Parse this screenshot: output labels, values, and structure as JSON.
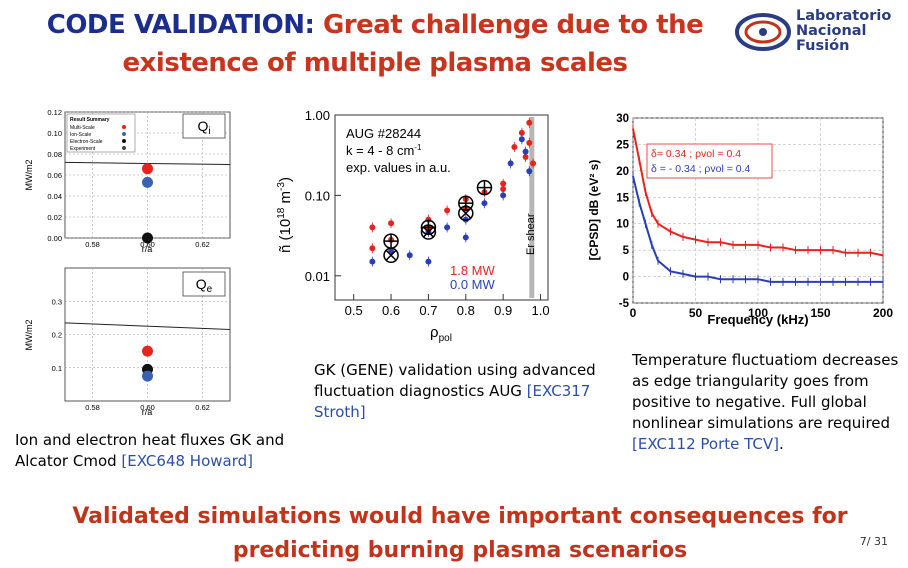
{
  "title": {
    "part1": "CODE VALIDATION:",
    "part2": " Great challenge due to the",
    "line2": "existence of multiple plasma scales"
  },
  "logo": {
    "line1": "Laboratorio",
    "line2": "Nacional",
    "line3": "Fusión"
  },
  "captions": {
    "left": {
      "text": "Ion and electron heat fluxes GK and Alcator Cmod ",
      "ref": "[EXC648 Howard]"
    },
    "middle": {
      "text": "GK (GENE) validation using advanced fluctuation diagnostics AUG ",
      "ref": "[EXC317 Stroth]"
    },
    "right": {
      "text": "Temperature fluctuatiom decreases as edge triangularity goes from positive to negative. Full global nonlinear simulations are required ",
      "ref": "[EXC112 Porte TCV]",
      "end": "."
    }
  },
  "conclusion": "Validated simulations would have important consequences for predicting burning plasma scenarios",
  "page": "7/ 31",
  "chart_data": [
    {
      "type": "scatter",
      "title": "Q_i",
      "xlabel": "r/a",
      "ylabel": "MW/m2",
      "xlim": [
        0.57,
        0.63
      ],
      "ylim": [
        0,
        0.12
      ],
      "x_ticks": [
        "0.58",
        "0.60",
        "0.62"
      ],
      "y_ticks": [
        "0.00",
        "0.02",
        "0.04",
        "0.06",
        "0.08",
        "0.10",
        "0.12"
      ],
      "legend_title": "Result Summary",
      "legend": [
        "Multi-Scale",
        "Ion-Scale",
        "Electron-Scale",
        "Experiment"
      ],
      "series": [
        {
          "name": "Multi-Scale",
          "color": "#e8231e",
          "x": [
            0.6
          ],
          "y": [
            0.066
          ]
        },
        {
          "name": "Ion-Scale",
          "color": "#3a62b4",
          "x": [
            0.6
          ],
          "y": [
            0.053
          ]
        },
        {
          "name": "Electron-Scale",
          "color": "#111111",
          "x": [
            0.6
          ],
          "y": [
            0.0
          ]
        }
      ],
      "experiment_line": [
        0.072,
        0.07
      ]
    },
    {
      "type": "scatter",
      "title": "Q_e",
      "xlabel": "r/a",
      "ylabel": "MW/m2",
      "xlim": [
        0.57,
        0.63
      ],
      "ylim": [
        0,
        0.4
      ],
      "x_ticks": [
        "0.58",
        "0.60",
        "0.62"
      ],
      "y_ticks": [
        "0.1",
        "0.2",
        "0.3"
      ],
      "series": [
        {
          "name": "Multi-Scale",
          "color": "#e8231e",
          "x": [
            0.6
          ],
          "y": [
            0.15
          ]
        },
        {
          "name": "Electron-Scale",
          "color": "#111111",
          "x": [
            0.6
          ],
          "y": [
            0.095
          ]
        },
        {
          "name": "Ion-Scale",
          "color": "#3a62b4",
          "x": [
            0.6
          ],
          "y": [
            0.075
          ]
        }
      ],
      "experiment_line": [
        0.235,
        0.215
      ]
    },
    {
      "type": "scatter",
      "title": "AUG #28244",
      "annotation1": "k = 4 - 8 cm-1",
      "annotation2": "exp. values in a.u.",
      "vertical_label": "Er shear",
      "xlabel": "ρpol",
      "ylabel": "ñ (10^18 m^-3)",
      "xlim": [
        0.45,
        1.02
      ],
      "yscale": "log",
      "ylim": [
        0.005,
        1.0
      ],
      "x_ticks": [
        "0.5",
        "0.6",
        "0.7",
        "0.8",
        "0.9",
        "1.0"
      ],
      "y_ticks": [
        "1.00",
        "0.10",
        "0.01"
      ],
      "legend": [
        {
          "name": "1.8 MW",
          "color": "#e8231e"
        },
        {
          "name": "0.0 MW",
          "color": "#2b3fb5"
        }
      ],
      "series": [
        {
          "name": "1.8 MW",
          "color": "#e8231e",
          "x": [
            0.55,
            0.55,
            0.6,
            0.6,
            0.7,
            0.7,
            0.75,
            0.8,
            0.8,
            0.85,
            0.9,
            0.9,
            0.93,
            0.95,
            0.96,
            0.97,
            0.97,
            0.98
          ],
          "y": [
            0.04,
            0.022,
            0.045,
            0.028,
            0.05,
            0.04,
            0.065,
            0.09,
            0.07,
            0.11,
            0.14,
            0.12,
            0.4,
            0.6,
            0.3,
            0.8,
            0.45,
            0.25
          ]
        },
        {
          "name": "0.0 MW",
          "color": "#2b3fb5",
          "x": [
            0.55,
            0.6,
            0.65,
            0.7,
            0.7,
            0.75,
            0.8,
            0.8,
            0.85,
            0.9,
            0.92,
            0.95,
            0.96,
            0.97
          ],
          "y": [
            0.015,
            0.02,
            0.018,
            0.035,
            0.015,
            0.04,
            0.05,
            0.03,
            0.08,
            0.1,
            0.25,
            0.5,
            0.35,
            0.2
          ]
        }
      ],
      "simulation_markers": {
        "plus": {
          "x": [
            0.6,
            0.7,
            0.8,
            0.85
          ],
          "y": [
            0.027,
            0.04,
            0.08,
            0.125
          ]
        },
        "cross": {
          "x": [
            0.6,
            0.7,
            0.8
          ],
          "y": [
            0.018,
            0.035,
            0.06
          ]
        }
      }
    },
    {
      "type": "line",
      "xlabel": "Frequency (kHz)",
      "ylabel": "[CPSD] dB (eV² s)",
      "xlim": [
        0,
        200
      ],
      "ylim": [
        -5,
        30
      ],
      "x_ticks": [
        "0",
        "50",
        "100",
        "150",
        "200"
      ],
      "y_ticks": [
        "-5",
        "0",
        "5",
        "10",
        "15",
        "20",
        "25",
        "30"
      ],
      "legend": [
        {
          "name": "δ= 0.34 ; ρvol = 0.4",
          "color": "#e8231e"
        },
        {
          "name": "δ = - 0.34 ; ρvol = 0.4",
          "color": "#2b3fb5"
        }
      ],
      "series": [
        {
          "name": "δ= 0.34",
          "color": "#e8231e",
          "x": [
            0,
            5,
            10,
            15,
            20,
            30,
            40,
            50,
            60,
            70,
            80,
            90,
            100,
            110,
            120,
            130,
            140,
            150,
            160,
            170,
            180,
            190,
            200
          ],
          "y": [
            28,
            22,
            16,
            12,
            10,
            8.5,
            7.5,
            7,
            6.5,
            6.5,
            6,
            6,
            6,
            5.5,
            5.5,
            5,
            5,
            5,
            5,
            4.5,
            4.5,
            4.5,
            4
          ]
        },
        {
          "name": "δ = -0.34",
          "color": "#2b3fb5",
          "x": [
            0,
            5,
            10,
            15,
            20,
            30,
            40,
            50,
            60,
            70,
            80,
            90,
            100,
            110,
            120,
            130,
            140,
            150,
            160,
            170,
            180,
            190,
            200
          ],
          "y": [
            19,
            14,
            10,
            6,
            3,
            1,
            0.5,
            0,
            0,
            -0.5,
            -0.5,
            -0.5,
            -0.5,
            -1,
            -1,
            -1,
            -1,
            -1,
            -1,
            -1,
            -1,
            -1,
            -1
          ]
        }
      ]
    }
  ]
}
